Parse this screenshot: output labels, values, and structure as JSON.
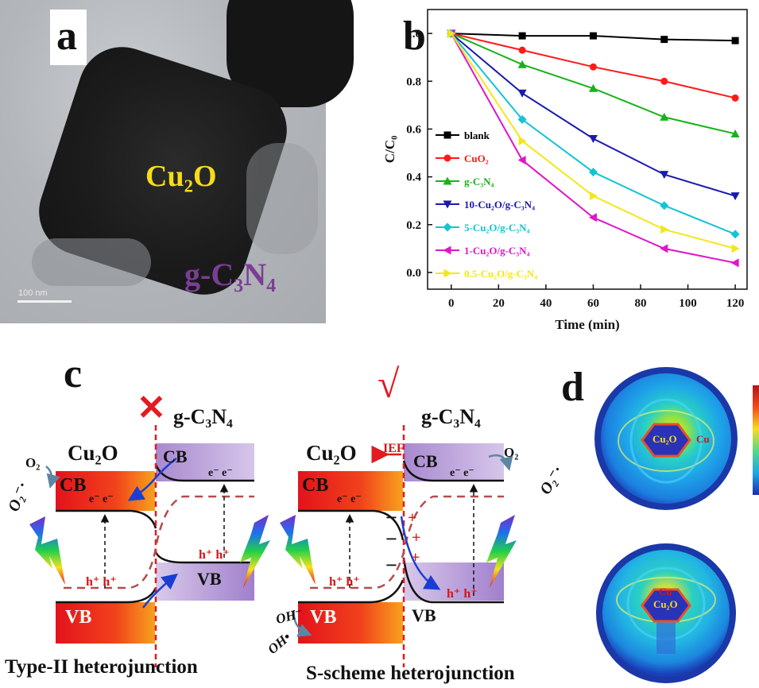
{
  "panels": {
    "a": {
      "letter": "a",
      "cu2o_label": "Cu₂O",
      "gcn_label": "g-C₃N₄",
      "scale_bar": "100 nm"
    },
    "b": {
      "letter": "b"
    },
    "c": {
      "letter": "c",
      "cross_mark": "✕",
      "check_mark": "√",
      "type2": {
        "gcn": "g-C₃N₄",
        "cu2o": "Cu₂O",
        "cb_left": "CB",
        "vb_left": "VB",
        "cb_right": "CB",
        "vb_right": "VB",
        "electrons_left": "e⁻ e⁻",
        "electrons_right": "e⁻  e⁻",
        "holes_left": "h⁺   h⁺",
        "holes_right": "h⁺  h⁺",
        "o2": "O₂",
        "o2_radical": "O₂⁻·",
        "caption": "Type-II heterojunction"
      },
      "sscheme": {
        "gcn": "g-C₃N₄",
        "cu2o": "Cu₂O",
        "ief": "IEF",
        "cb_left": "CB",
        "vb_left": "VB",
        "cb_right": "CB",
        "vb_right": "VB",
        "electrons_left": "e⁻ e⁻",
        "electrons_right": "e⁻  e⁻",
        "holes_left": "h⁺   h⁺",
        "holes_right": "h⁺  h⁺",
        "o2": "O₂",
        "o2_radical": "O₂⁻·",
        "oh_minus": "OH⁻",
        "oh_radical": "OH•",
        "plus_signs": "+",
        "minus_signs": "−",
        "caption": "S-scheme heterojunction"
      }
    },
    "d": {
      "letter": "d",
      "top": {
        "center": "Cu₂O",
        "side": "Cu"
      },
      "bottom": {
        "center": "Cu₂O",
        "side": "Cu"
      }
    }
  },
  "chart_data": {
    "type": "line",
    "xlabel": "Time (min)",
    "ylabel": "C/C₀",
    "xlim": [
      -10,
      125
    ],
    "ylim": [
      -0.07,
      1.1
    ],
    "xticks": [
      0,
      20,
      40,
      60,
      80,
      100,
      120
    ],
    "yticks": [
      0.0,
      0.2,
      0.4,
      0.6,
      0.8,
      1.0
    ],
    "x": [
      0,
      30,
      60,
      90,
      120
    ],
    "legend_position": "left",
    "series": [
      {
        "name": "blank",
        "color": "#000000",
        "marker": "square",
        "values": [
          1.0,
          0.99,
          0.99,
          0.975,
          0.97
        ]
      },
      {
        "name": "CuO₂",
        "color": "#ff1a1a",
        "marker": "circle",
        "values": [
          1.0,
          0.93,
          0.86,
          0.8,
          0.73
        ]
      },
      {
        "name": "g-C₃N₄",
        "color": "#19b219",
        "marker": "triangle-up",
        "values": [
          1.0,
          0.87,
          0.77,
          0.65,
          0.58
        ]
      },
      {
        "name": "10-Cu₂O/g-C₃N₄",
        "color": "#1a1ab0",
        "marker": "triangle-down",
        "values": [
          1.0,
          0.75,
          0.56,
          0.41,
          0.32
        ]
      },
      {
        "name": "5-Cu₂O/g-C₃N₄",
        "color": "#14c3d6",
        "marker": "diamond",
        "values": [
          1.0,
          0.64,
          0.42,
          0.28,
          0.16
        ]
      },
      {
        "name": "1-Cu₂O/g-C₃N₄",
        "color": "#e016c8",
        "marker": "triangle-left",
        "values": [
          1.0,
          0.47,
          0.23,
          0.1,
          0.04
        ]
      },
      {
        "name": "0.5-Cu₂O/g-C₃N₄",
        "color": "#f5e61a",
        "marker": "triangle-right",
        "values": [
          1.0,
          0.55,
          0.32,
          0.18,
          0.1
        ]
      }
    ]
  }
}
